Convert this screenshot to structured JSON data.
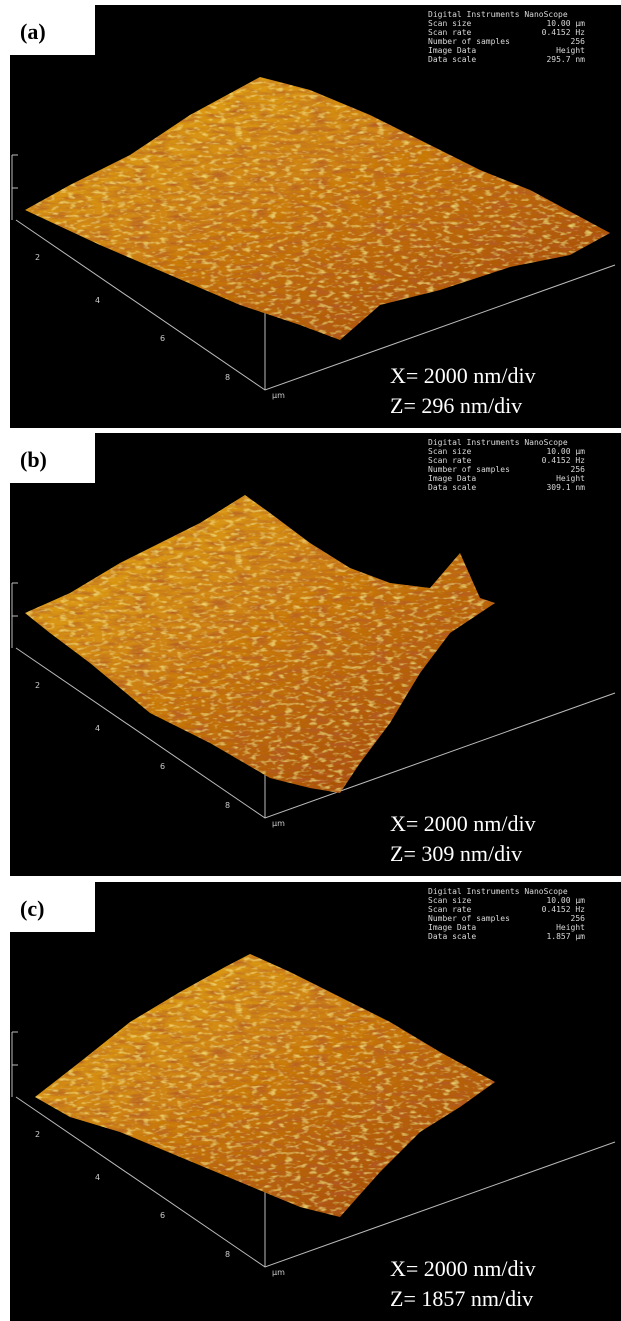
{
  "panels": [
    {
      "label": "(a)",
      "info": [
        [
          "Digital Instruments NanoScope"
        ],
        [
          "Scan size",
          "10.00 µm"
        ],
        [
          "Scan rate",
          "0.4152 Hz"
        ],
        [
          "Number of samples",
          "256"
        ],
        [
          "Image Data",
          "Height"
        ],
        [
          "Data scale",
          "295.7 nm"
        ]
      ],
      "axis_ticks": [
        "2",
        "4",
        "6",
        "8",
        "µm"
      ],
      "scale": [
        "X= 2000 nm/div",
        "Z= 296 nm/div"
      ]
    },
    {
      "label": "(b)",
      "info": [
        [
          "Digital Instruments NanoScope"
        ],
        [
          "Scan size",
          "10.00 µm"
        ],
        [
          "Scan rate",
          "0.4152 Hz"
        ],
        [
          "Number of samples",
          "256"
        ],
        [
          "Image Data",
          "Height"
        ],
        [
          "Data scale",
          "309.1 nm"
        ]
      ],
      "axis_ticks": [
        "2",
        "4",
        "6",
        "8",
        "µm"
      ],
      "scale": [
        "X= 2000 nm/div",
        "Z= 309 nm/div"
      ]
    },
    {
      "label": "(c)",
      "info": [
        [
          "Digital Instruments NanoScope"
        ],
        [
          "Scan size",
          "10.00 µm"
        ],
        [
          "Scan rate",
          "0.4152 Hz"
        ],
        [
          "Number of samples",
          "256"
        ],
        [
          "Image Data",
          "Height"
        ],
        [
          "Data scale",
          "1.857 µm"
        ]
      ],
      "axis_ticks": [
        "2",
        "4",
        "6",
        "8",
        "µm"
      ],
      "scale": [
        "X= 2000 nm/div",
        "Z= 1857 nm/div"
      ]
    }
  ]
}
